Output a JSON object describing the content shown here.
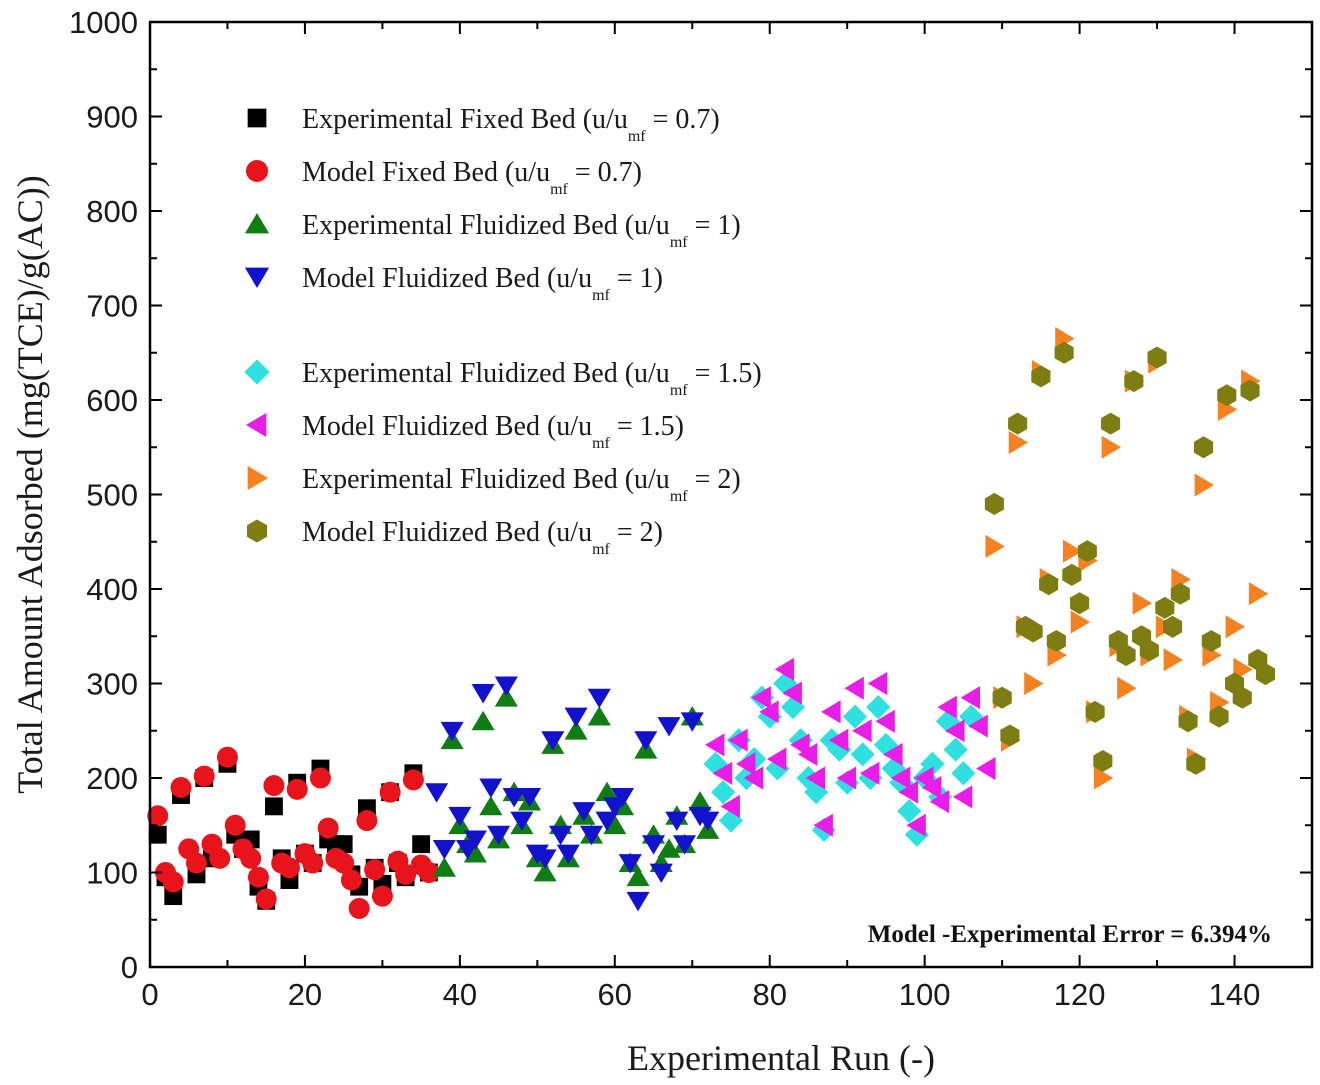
{
  "chart_data": {
    "type": "scatter",
    "title": "",
    "xlabel": "Experimental Run (-)",
    "ylabel": "Total Amount Adsorbed (mg(TCE)/g(AC))",
    "xlim": [
      0,
      150
    ],
    "ylim": [
      0,
      1000
    ],
    "x_ticks": [
      0,
      20,
      40,
      60,
      80,
      100,
      120,
      140
    ],
    "y_ticks": [
      0,
      100,
      200,
      300,
      400,
      500,
      600,
      700,
      800,
      900,
      1000
    ],
    "x_tick_labels": [
      "0",
      "20",
      "40",
      "60",
      "80",
      "100",
      "120",
      "140"
    ],
    "y_tick_labels": [
      "0",
      "100",
      "200",
      "300",
      "400",
      "500",
      "600",
      "700",
      "800",
      "900",
      "1000"
    ],
    "grid": false,
    "legend_position": "top-left",
    "annotation": "Model -Experimental Error = 6.394%",
    "series": [
      {
        "name": "Experimental Fixed Bed (u/umf = 0.7)",
        "legend_main": "Experimental Fixed Bed  (u/u",
        "legend_sub": "mf",
        "legend_tail": " = 0.7)",
        "marker": "square",
        "color": "#000000",
        "x": [
          1,
          2,
          3,
          4,
          6,
          7,
          8,
          10,
          11,
          12,
          13,
          14,
          15,
          16,
          17,
          18,
          19,
          20,
          21,
          22,
          23,
          24,
          25,
          26,
          27,
          28,
          29,
          30,
          31,
          32,
          33,
          34,
          35,
          36
        ],
        "y": [
          140,
          95,
          75,
          182,
          98,
          200,
          115,
          215,
          140,
          125,
          135,
          85,
          70,
          170,
          115,
          92,
          195,
          120,
          110,
          210,
          135,
          130,
          130,
          98,
          85,
          168,
          105,
          88,
          185,
          110,
          95,
          205,
          130,
          100
        ]
      },
      {
        "name": "Model Fixed Bed (u/umf = 0.7)",
        "legend_main": "Model Fixed Bed (u/u",
        "legend_sub": "mf",
        "legend_tail": " = 0.7)",
        "marker": "circle",
        "color": "#e8141b",
        "x": [
          1,
          2,
          3,
          4,
          5,
          6,
          7,
          8,
          9,
          10,
          11,
          12,
          13,
          14,
          15,
          16,
          17,
          18,
          19,
          20,
          21,
          22,
          23,
          24,
          25,
          26,
          27,
          28,
          29,
          30,
          31,
          32,
          33,
          34,
          35,
          36
        ],
        "y": [
          160,
          100,
          90,
          190,
          125,
          110,
          202,
          130,
          115,
          222,
          150,
          125,
          115,
          95,
          72,
          192,
          110,
          105,
          188,
          120,
          110,
          200,
          147,
          115,
          110,
          92,
          62,
          155,
          103,
          75,
          185,
          112,
          98,
          198,
          108,
          100
        ]
      },
      {
        "name": "Experimental Fluidized Bed (u/umf = 1)",
        "legend_main": "Experimental Fluidized Bed  (u/u",
        "legend_sub": "mf",
        "legend_tail": " = 1)",
        "marker": "triangle-up",
        "color": "#0f7d13",
        "x": [
          38,
          39,
          40,
          41,
          42,
          43,
          44,
          45,
          46,
          47,
          48,
          49,
          50,
          51,
          52,
          53,
          54,
          55,
          56,
          57,
          58,
          59,
          60,
          61,
          62,
          63,
          64,
          65,
          66,
          67,
          68,
          69,
          70,
          71,
          72
        ],
        "y": [
          105,
          240,
          150,
          130,
          120,
          260,
          170,
          135,
          285,
          185,
          150,
          175,
          115,
          100,
          235,
          150,
          115,
          250,
          160,
          140,
          265,
          185,
          150,
          170,
          110,
          95,
          230,
          140,
          110,
          125,
          160,
          130,
          265,
          175,
          145
        ]
      },
      {
        "name": "Model Fluidized Bed (u/umf = 1)",
        "legend_main": "Model Fluidized Bed  (u/u",
        "legend_sub": "mf",
        "legend_tail": " = 1)",
        "marker": "triangle-down",
        "color": "#1212cc",
        "x": [
          37,
          38,
          39,
          40,
          41,
          42,
          43,
          44,
          45,
          46,
          47,
          48,
          49,
          50,
          51,
          52,
          53,
          54,
          55,
          56,
          57,
          58,
          59,
          60,
          61,
          62,
          63,
          64,
          65,
          66,
          67,
          68,
          69,
          70,
          71,
          72
        ],
        "y": [
          185,
          125,
          250,
          160,
          125,
          135,
          290,
          190,
          140,
          298,
          180,
          155,
          180,
          120,
          115,
          240,
          140,
          120,
          265,
          165,
          140,
          285,
          155,
          170,
          180,
          110,
          70,
          240,
          130,
          100,
          255,
          155,
          130,
          260,
          160,
          155
        ]
      },
      {
        "name": "Experimental Fluidized Bed (u/umf = 1.5)",
        "legend_main": "Experimental Fluidized Bed  (u/u",
        "legend_sub": "mf",
        "legend_tail": " = 1.5)",
        "marker": "diamond",
        "color": "#2ee0e0",
        "x": [
          73,
          74,
          75,
          76,
          77,
          78,
          79,
          80,
          81,
          82,
          83,
          84,
          85,
          86,
          87,
          88,
          89,
          90,
          91,
          92,
          93,
          94,
          95,
          96,
          97,
          98,
          99,
          100,
          101,
          102,
          103,
          104,
          105,
          106
        ],
        "y": [
          215,
          185,
          155,
          240,
          200,
          220,
          285,
          265,
          210,
          300,
          275,
          240,
          200,
          185,
          145,
          240,
          230,
          195,
          265,
          225,
          200,
          275,
          235,
          210,
          195,
          165,
          140,
          200,
          215,
          180,
          260,
          230,
          205,
          265
        ]
      },
      {
        "name": "Model Fluidized Bed (u/umf = 1.5)",
        "legend_main": "Model Fluidized Bed  (u/u",
        "legend_sub": "mf",
        "legend_tail": " = 1.5)",
        "marker": "triangle-left",
        "color": "#e81ee8",
        "x": [
          73,
          74,
          75,
          76,
          77,
          78,
          79,
          80,
          81,
          82,
          83,
          84,
          85,
          86,
          87,
          88,
          89,
          90,
          91,
          92,
          93,
          94,
          95,
          96,
          97,
          98,
          99,
          100,
          101,
          102,
          103,
          104,
          105,
          106,
          107,
          108
        ],
        "y": [
          235,
          205,
          170,
          240,
          215,
          200,
          285,
          270,
          220,
          315,
          290,
          235,
          225,
          200,
          150,
          270,
          240,
          200,
          295,
          250,
          205,
          300,
          260,
          225,
          200,
          185,
          150,
          200,
          190,
          175,
          275,
          250,
          180,
          285,
          255,
          210
        ]
      },
      {
        "name": "Experimental Fluidized Bed (u/umf = 2)",
        "legend_main": "Experimental Fluidized Bed  (u/u",
        "legend_sub": "mf",
        "legend_tail": " = 2)",
        "marker": "triangle-right",
        "color": "#f58220",
        "x": [
          109,
          110,
          111,
          112,
          113,
          114,
          115,
          116,
          117,
          118,
          119,
          120,
          121,
          122,
          123,
          124,
          125,
          126,
          127,
          128,
          129,
          130,
          131,
          132,
          133,
          134,
          135,
          136,
          137,
          138,
          139,
          140,
          141,
          142,
          143
        ],
        "y": [
          445,
          285,
          240,
          555,
          360,
          300,
          630,
          410,
          330,
          665,
          440,
          365,
          430,
          270,
          200,
          550,
          340,
          295,
          620,
          385,
          330,
          640,
          360,
          325,
          410,
          265,
          220,
          510,
          330,
          280,
          590,
          360,
          315,
          620,
          395
        ]
      },
      {
        "name": "Model Fluidized Bed (u/umf = 2)",
        "legend_main": "Model Fluidized Bed  (u/u",
        "legend_sub": "mf",
        "legend_tail": " = 2)",
        "marker": "hexagon",
        "color": "#7d7d12",
        "x": [
          109,
          110,
          111,
          112,
          113,
          114,
          115,
          116,
          117,
          118,
          119,
          120,
          121,
          122,
          123,
          124,
          125,
          126,
          127,
          128,
          129,
          130,
          131,
          132,
          133,
          134,
          135,
          136,
          137,
          138,
          139,
          140,
          141,
          142,
          143,
          144
        ],
        "y": [
          490,
          285,
          245,
          575,
          360,
          355,
          625,
          405,
          345,
          650,
          415,
          385,
          440,
          270,
          218,
          575,
          345,
          330,
          620,
          350,
          335,
          645,
          380,
          360,
          395,
          260,
          215,
          550,
          345,
          265,
          605,
          300,
          285,
          610,
          325,
          310
        ]
      }
    ]
  }
}
